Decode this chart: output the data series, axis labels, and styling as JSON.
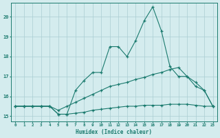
{
  "xlabel": "Humidex (Indice chaleur)",
  "bg_color": "#d4ecee",
  "grid_color": "#aacdd2",
  "line_color": "#1a7a6e",
  "xlim": [
    -0.5,
    23.5
  ],
  "ylim": [
    14.75,
    20.7
  ],
  "yticks": [
    15,
    16,
    17,
    18,
    19,
    20
  ],
  "xticks": [
    0,
    1,
    2,
    3,
    4,
    5,
    6,
    7,
    8,
    9,
    10,
    11,
    12,
    13,
    14,
    15,
    16,
    17,
    18,
    19,
    20,
    21,
    22,
    23
  ],
  "line1_x": [
    0,
    1,
    2,
    3,
    4,
    5,
    6,
    7,
    8,
    9,
    10,
    11,
    12,
    13,
    14,
    15,
    16,
    17,
    18,
    19,
    20,
    21,
    22,
    23
  ],
  "line1_y": [
    15.5,
    15.5,
    15.5,
    15.5,
    15.5,
    15.1,
    15.1,
    16.3,
    16.8,
    17.2,
    17.2,
    18.5,
    18.5,
    18.0,
    18.8,
    19.8,
    20.5,
    19.3,
    17.5,
    17.0,
    17.0,
    16.5,
    16.3,
    15.5
  ],
  "line2_x": [
    0,
    1,
    2,
    3,
    4,
    5,
    6,
    7,
    8,
    9,
    10,
    11,
    12,
    13,
    14,
    15,
    16,
    17,
    18,
    19,
    20,
    21,
    22,
    23
  ],
  "line2_y": [
    15.5,
    15.5,
    15.5,
    15.5,
    15.5,
    15.3,
    15.5,
    15.7,
    15.9,
    16.1,
    16.3,
    16.5,
    16.6,
    16.7,
    16.85,
    16.95,
    17.1,
    17.2,
    17.35,
    17.45,
    17.0,
    16.7,
    16.3,
    15.5
  ],
  "line3_x": [
    0,
    1,
    2,
    3,
    4,
    5,
    6,
    7,
    8,
    9,
    10,
    11,
    12,
    13,
    14,
    15,
    16,
    17,
    18,
    19,
    20,
    21,
    22,
    23
  ],
  "line3_y": [
    15.5,
    15.5,
    15.5,
    15.5,
    15.5,
    15.1,
    15.1,
    15.15,
    15.2,
    15.3,
    15.35,
    15.4,
    15.45,
    15.5,
    15.5,
    15.55,
    15.55,
    15.55,
    15.6,
    15.6,
    15.6,
    15.55,
    15.5,
    15.5
  ]
}
